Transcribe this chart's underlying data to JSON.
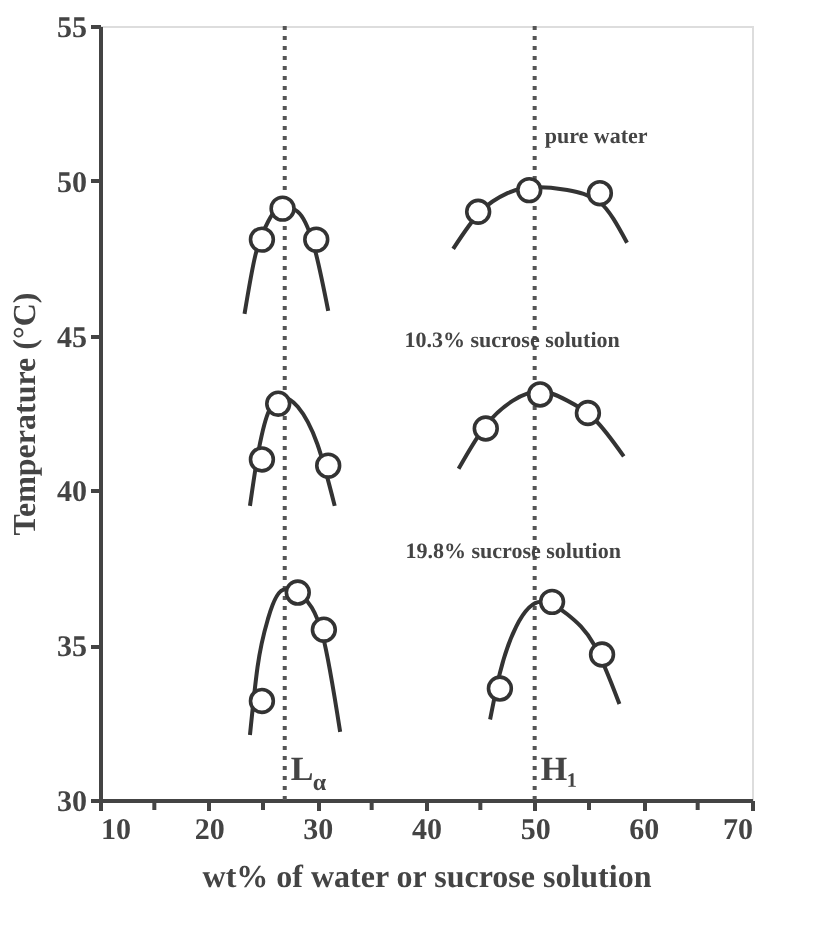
{
  "chart_data": {
    "type": "scatter",
    "xlabel": "wt% of water or sucrose solution",
    "ylabel": "Temperature (°C)",
    "xlim": [
      10,
      70
    ],
    "ylim": [
      30,
      55
    ],
    "xticks": [
      10,
      {
        "value": 15,
        "label": null
      },
      20,
      {
        "value": 25,
        "label": null
      },
      30,
      {
        "value": 35,
        "label": null
      },
      40,
      {
        "value": 45,
        "label": null
      },
      50,
      {
        "value": 55,
        "label": null
      },
      60,
      {
        "value": 65,
        "label": null
      },
      70
    ],
    "yticks": [
      30,
      35,
      40,
      45,
      50,
      55
    ],
    "grid": false,
    "marker": "circle",
    "series": [
      {
        "type": "line",
        "color": "#333333",
        "marker": "none",
        "line_style": "solid",
        "x": [
          23.3,
          24.3,
          25.5,
          26.8,
          28.2,
          29.6,
          31.0
        ],
        "values": [
          45.7,
          47.6,
          48.7,
          49.2,
          49.0,
          48.0,
          45.8
        ]
      },
      {
        "type": "line",
        "color": "#333333",
        "marker": "none",
        "line_style": "solid",
        "x": [
          23.8,
          24.6,
          25.6,
          26.8,
          28.2,
          30.0,
          31.6
        ],
        "values": [
          39.5,
          41.3,
          42.6,
          43.0,
          42.7,
          41.5,
          39.5
        ]
      },
      {
        "type": "line",
        "color": "#333333",
        "marker": "none",
        "line_style": "solid",
        "x": [
          23.8,
          24.5,
          25.5,
          27.0,
          28.5,
          30.5,
          32.1
        ],
        "values": [
          32.1,
          34.3,
          35.9,
          36.8,
          36.6,
          35.3,
          32.2
        ]
      },
      {
        "type": "line",
        "color": "#333333",
        "marker": "none",
        "line_style": "solid",
        "x": [
          42.5,
          45.0,
          47.5,
          50.0,
          53.0,
          56.0,
          58.5
        ],
        "values": [
          47.8,
          49.0,
          49.6,
          49.8,
          49.7,
          49.3,
          48.0
        ]
      },
      {
        "type": "line",
        "color": "#333333",
        "marker": "none",
        "line_style": "solid",
        "x": [
          43.0,
          45.5,
          48.0,
          50.5,
          53.0,
          55.5,
          58.2
        ],
        "values": [
          40.7,
          42.1,
          42.9,
          43.2,
          42.9,
          42.3,
          41.1
        ]
      },
      {
        "type": "line",
        "color": "#333333",
        "marker": "none",
        "line_style": "solid",
        "x": [
          45.9,
          46.8,
          48.3,
          50.6,
          53.0,
          55.5,
          57.8
        ],
        "values": [
          32.6,
          34.1,
          35.6,
          36.4,
          36.0,
          35.0,
          33.1
        ]
      },
      {
        "color": "#333333",
        "x": [
          24.9,
          26.8,
          29.9,
          44.8,
          49.5,
          56.0
        ],
        "values": [
          48.1,
          49.1,
          48.1,
          49.0,
          49.7,
          49.6
        ]
      },
      {
        "color": "#333333",
        "x": [
          24.9,
          26.4,
          31.0,
          45.5,
          50.5,
          54.9
        ],
        "values": [
          41.0,
          42.8,
          40.8,
          42.0,
          43.1,
          42.5
        ]
      },
      {
        "color": "#333333",
        "x": [
          24.9,
          28.2,
          30.6,
          46.8,
          51.6,
          56.2
        ],
        "values": [
          33.2,
          36.7,
          35.5,
          33.6,
          36.4,
          34.7
        ]
      }
    ],
    "ref_lines": [
      {
        "axis": "x",
        "value": 27,
        "label": "L$_{α}$",
        "color": "#555555",
        "line_style": "dotted"
      },
      {
        "axis": "x",
        "value": 50,
        "label": "H₁",
        "color": "#555555",
        "line_style": "dotted"
      }
    ],
    "annotations": [
      {
        "text": "pure water",
        "x": 50,
        "y": 49.8
      },
      {
        "text": "10.3% sucrose solution",
        "x": 50.5,
        "y": 43.2
      },
      {
        "text": "19.8% sucrose solution",
        "x": 50.6,
        "y": 36.4
      }
    ]
  }
}
